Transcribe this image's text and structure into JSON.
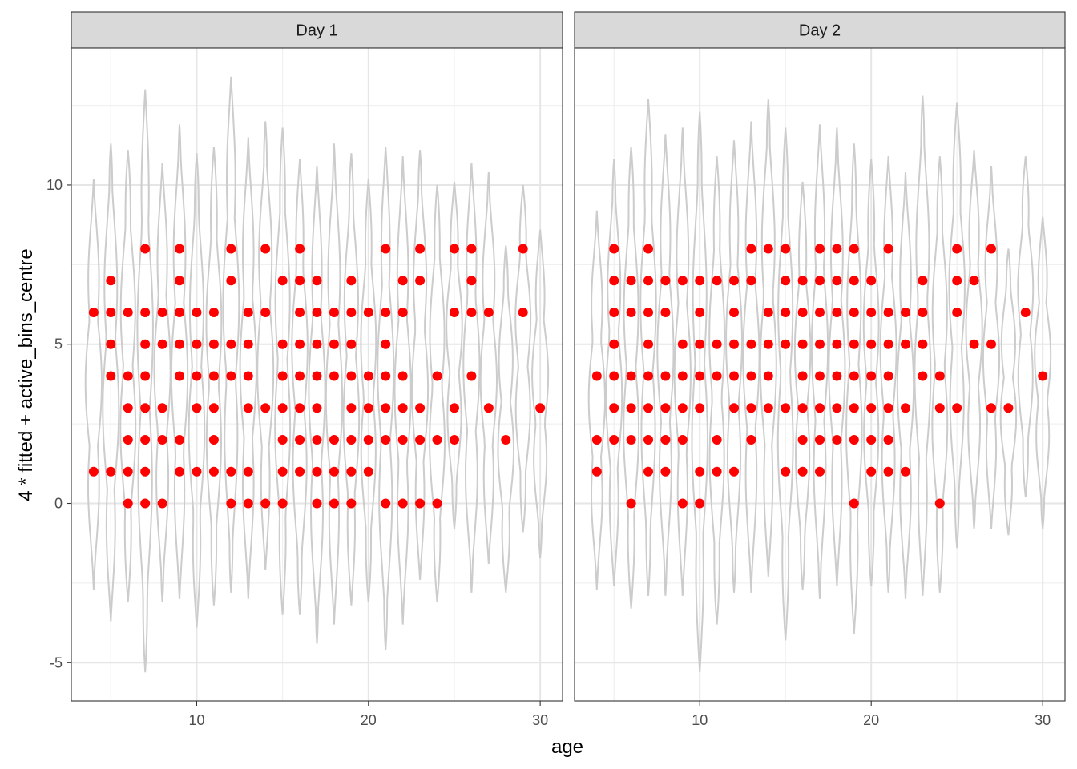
{
  "chart_data": {
    "type": "scatter",
    "overlay": "violin",
    "xlabel": "age",
    "ylabel": "4 * fitted + active_bins_centre",
    "xlim": [
      2.7,
      31.3
    ],
    "ylim": [
      -6.2,
      14.3
    ],
    "x_ticks": [
      10,
      20,
      30
    ],
    "x_tick_labels": [
      "10",
      "20",
      "30"
    ],
    "y_ticks": [
      -5,
      0,
      5,
      10
    ],
    "y_tick_labels": [
      "-5",
      "0",
      "5",
      "10"
    ],
    "grid": true,
    "point_color": "#ff0000",
    "violin_color": "#cccccc",
    "panels": [
      {
        "name": "Day 1",
        "points": [
          [
            4,
            1
          ],
          [
            4,
            6
          ],
          [
            5,
            1
          ],
          [
            5,
            4
          ],
          [
            5,
            5
          ],
          [
            5,
            6
          ],
          [
            5,
            7
          ],
          [
            6,
            0
          ],
          [
            6,
            1
          ],
          [
            6,
            2
          ],
          [
            6,
            3
          ],
          [
            6,
            4
          ],
          [
            6,
            6
          ],
          [
            7,
            0
          ],
          [
            7,
            1
          ],
          [
            7,
            2
          ],
          [
            7,
            3
          ],
          [
            7,
            4
          ],
          [
            7,
            5
          ],
          [
            7,
            6
          ],
          [
            7,
            8
          ],
          [
            8,
            0
          ],
          [
            8,
            2
          ],
          [
            8,
            3
          ],
          [
            8,
            5
          ],
          [
            8,
            6
          ],
          [
            9,
            1
          ],
          [
            9,
            2
          ],
          [
            9,
            4
          ],
          [
            9,
            5
          ],
          [
            9,
            6
          ],
          [
            9,
            7
          ],
          [
            9,
            8
          ],
          [
            10,
            1
          ],
          [
            10,
            3
          ],
          [
            10,
            4
          ],
          [
            10,
            5
          ],
          [
            10,
            6
          ],
          [
            11,
            1
          ],
          [
            11,
            2
          ],
          [
            11,
            3
          ],
          [
            11,
            4
          ],
          [
            11,
            5
          ],
          [
            11,
            6
          ],
          [
            12,
            0
          ],
          [
            12,
            1
          ],
          [
            12,
            4
          ],
          [
            12,
            5
          ],
          [
            12,
            7
          ],
          [
            12,
            8
          ],
          [
            13,
            0
          ],
          [
            13,
            1
          ],
          [
            13,
            3
          ],
          [
            13,
            4
          ],
          [
            13,
            5
          ],
          [
            13,
            6
          ],
          [
            14,
            0
          ],
          [
            14,
            3
          ],
          [
            14,
            6
          ],
          [
            14,
            8
          ],
          [
            15,
            0
          ],
          [
            15,
            1
          ],
          [
            15,
            2
          ],
          [
            15,
            3
          ],
          [
            15,
            4
          ],
          [
            15,
            5
          ],
          [
            15,
            7
          ],
          [
            16,
            1
          ],
          [
            16,
            2
          ],
          [
            16,
            3
          ],
          [
            16,
            4
          ],
          [
            16,
            5
          ],
          [
            16,
            6
          ],
          [
            16,
            7
          ],
          [
            16,
            8
          ],
          [
            17,
            0
          ],
          [
            17,
            1
          ],
          [
            17,
            2
          ],
          [
            17,
            3
          ],
          [
            17,
            4
          ],
          [
            17,
            5
          ],
          [
            17,
            6
          ],
          [
            17,
            7
          ],
          [
            18,
            0
          ],
          [
            18,
            1
          ],
          [
            18,
            2
          ],
          [
            18,
            4
          ],
          [
            18,
            5
          ],
          [
            18,
            6
          ],
          [
            19,
            0
          ],
          [
            19,
            1
          ],
          [
            19,
            2
          ],
          [
            19,
            3
          ],
          [
            19,
            4
          ],
          [
            19,
            5
          ],
          [
            19,
            6
          ],
          [
            19,
            7
          ],
          [
            20,
            1
          ],
          [
            20,
            2
          ],
          [
            20,
            3
          ],
          [
            20,
            4
          ],
          [
            20,
            6
          ],
          [
            21,
            0
          ],
          [
            21,
            2
          ],
          [
            21,
            3
          ],
          [
            21,
            4
          ],
          [
            21,
            5
          ],
          [
            21,
            6
          ],
          [
            21,
            8
          ],
          [
            22,
            0
          ],
          [
            22,
            2
          ],
          [
            22,
            3
          ],
          [
            22,
            4
          ],
          [
            22,
            6
          ],
          [
            22,
            7
          ],
          [
            23,
            0
          ],
          [
            23,
            2
          ],
          [
            23,
            3
          ],
          [
            23,
            7
          ],
          [
            23,
            8
          ],
          [
            24,
            0
          ],
          [
            24,
            2
          ],
          [
            24,
            4
          ],
          [
            25,
            2
          ],
          [
            25,
            3
          ],
          [
            25,
            6
          ],
          [
            25,
            8
          ],
          [
            26,
            4
          ],
          [
            26,
            6
          ],
          [
            26,
            7
          ],
          [
            26,
            8
          ],
          [
            27,
            3
          ],
          [
            27,
            6
          ],
          [
            28,
            2
          ],
          [
            29,
            6
          ],
          [
            29,
            8
          ],
          [
            30,
            3
          ]
        ],
        "violins": [
          [
            4,
            -2.7,
            10.2
          ],
          [
            5,
            -3.7,
            11.3
          ],
          [
            6,
            -3.1,
            11.1
          ],
          [
            7,
            -5.3,
            13.0
          ],
          [
            8,
            -3.1,
            10.7
          ],
          [
            9,
            -3.0,
            11.9
          ],
          [
            10,
            -3.9,
            11.0
          ],
          [
            11,
            -3.2,
            11.2
          ],
          [
            12,
            -2.8,
            13.4
          ],
          [
            13,
            -3.0,
            11.5
          ],
          [
            14,
            -2.1,
            12.0
          ],
          [
            15,
            -3.5,
            11.8
          ],
          [
            16,
            -3.5,
            10.8
          ],
          [
            17,
            -4.4,
            10.6
          ],
          [
            18,
            -3.8,
            11.3
          ],
          [
            19,
            -3.2,
            11.0
          ],
          [
            20,
            -3.1,
            10.2
          ],
          [
            21,
            -4.6,
            11.2
          ],
          [
            22,
            -3.8,
            10.9
          ],
          [
            23,
            -2.4,
            11.1
          ],
          [
            24,
            -3.1,
            10.0
          ],
          [
            25,
            -0.8,
            10.1
          ],
          [
            26,
            -2.8,
            10.7
          ],
          [
            27,
            -1.9,
            10.4
          ],
          [
            28,
            -2.8,
            8.1
          ],
          [
            29,
            -0.9,
            10.0
          ],
          [
            30,
            -1.7,
            8.6
          ]
        ]
      },
      {
        "name": "Day 2",
        "points": [
          [
            4,
            1
          ],
          [
            4,
            2
          ],
          [
            4,
            4
          ],
          [
            5,
            2
          ],
          [
            5,
            3
          ],
          [
            5,
            4
          ],
          [
            5,
            5
          ],
          [
            5,
            6
          ],
          [
            5,
            7
          ],
          [
            5,
            8
          ],
          [
            6,
            0
          ],
          [
            6,
            2
          ],
          [
            6,
            3
          ],
          [
            6,
            4
          ],
          [
            6,
            6
          ],
          [
            6,
            7
          ],
          [
            7,
            1
          ],
          [
            7,
            2
          ],
          [
            7,
            3
          ],
          [
            7,
            4
          ],
          [
            7,
            5
          ],
          [
            7,
            6
          ],
          [
            7,
            7
          ],
          [
            7,
            8
          ],
          [
            8,
            1
          ],
          [
            8,
            2
          ],
          [
            8,
            3
          ],
          [
            8,
            4
          ],
          [
            8,
            6
          ],
          [
            8,
            7
          ],
          [
            9,
            0
          ],
          [
            9,
            2
          ],
          [
            9,
            3
          ],
          [
            9,
            4
          ],
          [
            9,
            5
          ],
          [
            9,
            7
          ],
          [
            10,
            0
          ],
          [
            10,
            1
          ],
          [
            10,
            3
          ],
          [
            10,
            4
          ],
          [
            10,
            5
          ],
          [
            10,
            6
          ],
          [
            10,
            7
          ],
          [
            11,
            1
          ],
          [
            11,
            2
          ],
          [
            11,
            4
          ],
          [
            11,
            5
          ],
          [
            11,
            7
          ],
          [
            12,
            1
          ],
          [
            12,
            3
          ],
          [
            12,
            4
          ],
          [
            12,
            5
          ],
          [
            12,
            6
          ],
          [
            12,
            7
          ],
          [
            13,
            2
          ],
          [
            13,
            3
          ],
          [
            13,
            4
          ],
          [
            13,
            5
          ],
          [
            13,
            7
          ],
          [
            13,
            8
          ],
          [
            14,
            3
          ],
          [
            14,
            4
          ],
          [
            14,
            5
          ],
          [
            14,
            6
          ],
          [
            14,
            8
          ],
          [
            15,
            1
          ],
          [
            15,
            3
          ],
          [
            15,
            5
          ],
          [
            15,
            6
          ],
          [
            15,
            7
          ],
          [
            15,
            8
          ],
          [
            16,
            1
          ],
          [
            16,
            2
          ],
          [
            16,
            3
          ],
          [
            16,
            4
          ],
          [
            16,
            5
          ],
          [
            16,
            6
          ],
          [
            16,
            7
          ],
          [
            17,
            1
          ],
          [
            17,
            2
          ],
          [
            17,
            3
          ],
          [
            17,
            4
          ],
          [
            17,
            5
          ],
          [
            17,
            6
          ],
          [
            17,
            7
          ],
          [
            17,
            8
          ],
          [
            18,
            2
          ],
          [
            18,
            3
          ],
          [
            18,
            4
          ],
          [
            18,
            5
          ],
          [
            18,
            6
          ],
          [
            18,
            7
          ],
          [
            18,
            8
          ],
          [
            19,
            0
          ],
          [
            19,
            2
          ],
          [
            19,
            3
          ],
          [
            19,
            4
          ],
          [
            19,
            5
          ],
          [
            19,
            6
          ],
          [
            19,
            7
          ],
          [
            19,
            8
          ],
          [
            20,
            1
          ],
          [
            20,
            2
          ],
          [
            20,
            3
          ],
          [
            20,
            4
          ],
          [
            20,
            5
          ],
          [
            20,
            6
          ],
          [
            20,
            7
          ],
          [
            21,
            1
          ],
          [
            21,
            2
          ],
          [
            21,
            3
          ],
          [
            21,
            4
          ],
          [
            21,
            5
          ],
          [
            21,
            6
          ],
          [
            21,
            8
          ],
          [
            22,
            1
          ],
          [
            22,
            3
          ],
          [
            22,
            5
          ],
          [
            22,
            6
          ],
          [
            23,
            4
          ],
          [
            23,
            5
          ],
          [
            23,
            6
          ],
          [
            23,
            7
          ],
          [
            24,
            0
          ],
          [
            24,
            3
          ],
          [
            24,
            4
          ],
          [
            25,
            3
          ],
          [
            25,
            6
          ],
          [
            25,
            7
          ],
          [
            25,
            8
          ],
          [
            26,
            5
          ],
          [
            26,
            7
          ],
          [
            27,
            3
          ],
          [
            27,
            5
          ],
          [
            27,
            8
          ],
          [
            28,
            3
          ],
          [
            29,
            6
          ],
          [
            30,
            4
          ]
        ],
        "violins": [
          [
            4,
            -2.7,
            9.2
          ],
          [
            5,
            -2.6,
            10.8
          ],
          [
            6,
            -3.3,
            11.2
          ],
          [
            7,
            -2.9,
            12.7
          ],
          [
            8,
            -2.9,
            11.6
          ],
          [
            9,
            -2.9,
            11.8
          ],
          [
            10,
            -5.3,
            12.3
          ],
          [
            11,
            -3.8,
            10.9
          ],
          [
            12,
            -2.8,
            11.4
          ],
          [
            13,
            -2.8,
            12.0
          ],
          [
            14,
            -2.3,
            12.7
          ],
          [
            15,
            -4.3,
            11.8
          ],
          [
            16,
            -2.7,
            10.1
          ],
          [
            17,
            -3.0,
            11.9
          ],
          [
            18,
            -2.6,
            11.8
          ],
          [
            19,
            -4.1,
            11.3
          ],
          [
            20,
            -2.6,
            10.8
          ],
          [
            21,
            -2.8,
            10.9
          ],
          [
            22,
            -3.0,
            10.4
          ],
          [
            23,
            -2.9,
            12.8
          ],
          [
            24,
            -2.8,
            10.9
          ],
          [
            25,
            -1.4,
            12.6
          ],
          [
            26,
            -0.8,
            11.1
          ],
          [
            27,
            -0.8,
            10.6
          ],
          [
            28,
            -1.0,
            8.0
          ],
          [
            29,
            0.2,
            10.9
          ],
          [
            30,
            -0.8,
            9.0
          ]
        ]
      }
    ]
  }
}
